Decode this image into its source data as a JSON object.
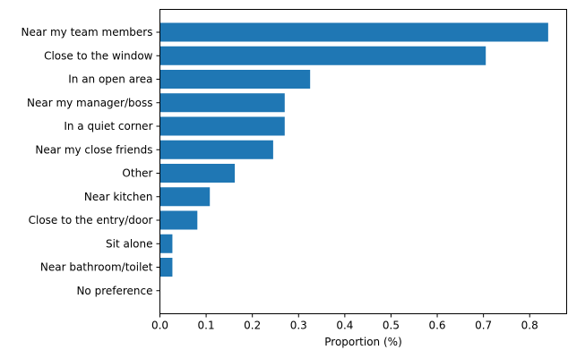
{
  "chart_data": {
    "type": "bar",
    "orientation": "horizontal",
    "categories": [
      "Near my team members",
      "Close to the window",
      "In an open area",
      "Near my manager/boss",
      "In a quiet corner",
      "Near my close friends",
      "Other",
      "Near kitchen",
      "Close to the entry/door",
      "Sit alone",
      "Near bathroom/toilet",
      "No preference"
    ],
    "values": [
      0.84,
      0.705,
      0.325,
      0.27,
      0.27,
      0.245,
      0.162,
      0.108,
      0.081,
      0.027,
      0.027,
      0.0
    ],
    "title": "",
    "xlabel": "Proportion (%)",
    "ylabel": "",
    "xlim": [
      0,
      0.88
    ],
    "xticks": [
      "0.0",
      "0.1",
      "0.2",
      "0.3",
      "0.4",
      "0.5",
      "0.6",
      "0.7",
      "0.8"
    ],
    "grid": false,
    "bar_color": "#1f77b4"
  }
}
